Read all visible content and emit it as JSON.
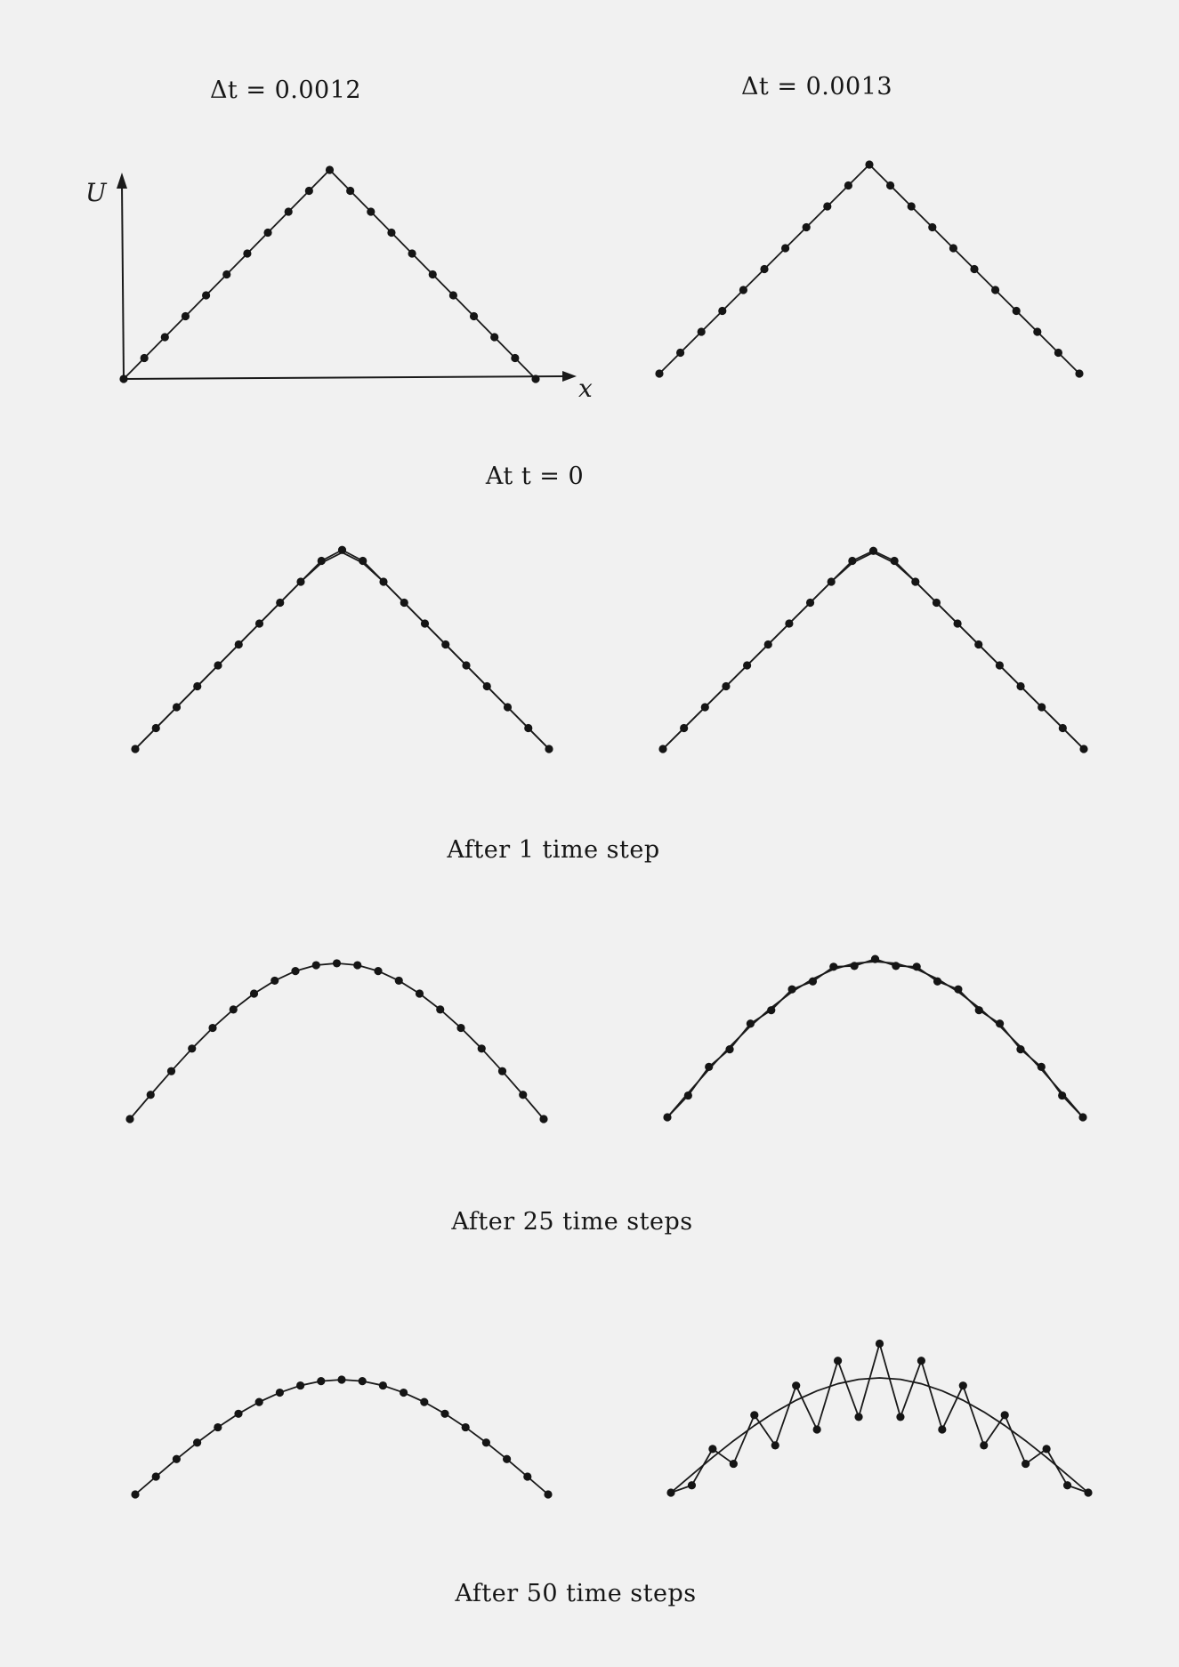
{
  "column_titles": [
    "Δt = 0.0012",
    "Δt = 0.0013"
  ],
  "row_captions": [
    "At t = 0",
    "After 1 time step",
    "After 25 time steps",
    "After 50 time steps"
  ],
  "axis_labels": {
    "y": "U",
    "x": "x"
  },
  "chart_data": [
    {
      "type": "line",
      "title": "Δt = 0.0012",
      "caption": "At t = 0",
      "x": [
        0,
        0.05,
        0.1,
        0.15,
        0.2,
        0.25,
        0.3,
        0.35,
        0.4,
        0.45,
        0.5,
        0.55,
        0.6,
        0.65,
        0.7,
        0.75,
        0.8,
        0.85,
        0.9,
        0.95,
        1.0
      ],
      "series": [
        {
          "values": [
            0,
            0.1,
            0.2,
            0.3,
            0.4,
            0.5,
            0.6,
            0.7,
            0.8,
            0.9,
            1.0,
            0.9,
            0.8,
            0.7,
            0.6,
            0.5,
            0.4,
            0.3,
            0.2,
            0.1,
            0
          ]
        }
      ],
      "xlabel": "x",
      "ylabel": "U",
      "ylim": [
        0,
        1
      ]
    },
    {
      "type": "line",
      "title": "Δt = 0.0013",
      "caption": "At t = 0",
      "x": [
        0,
        0.05,
        0.1,
        0.15,
        0.2,
        0.25,
        0.3,
        0.35,
        0.4,
        0.45,
        0.5,
        0.55,
        0.6,
        0.65,
        0.7,
        0.75,
        0.8,
        0.85,
        0.9,
        0.95,
        1.0
      ],
      "series": [
        {
          "values": [
            0,
            0.1,
            0.2,
            0.3,
            0.4,
            0.5,
            0.6,
            0.7,
            0.8,
            0.9,
            1.0,
            0.9,
            0.8,
            0.7,
            0.6,
            0.5,
            0.4,
            0.3,
            0.2,
            0.1,
            0
          ]
        }
      ],
      "ylim": [
        0,
        1
      ]
    },
    {
      "type": "line",
      "title": "Δt = 0.0012",
      "caption": "After 1 time step",
      "x": [
        0,
        0.05,
        0.1,
        0.15,
        0.2,
        0.25,
        0.3,
        0.35,
        0.4,
        0.45,
        0.5,
        0.55,
        0.6,
        0.65,
        0.7,
        0.75,
        0.8,
        0.85,
        0.9,
        0.95,
        1.0
      ],
      "series": [
        {
          "values": [
            0,
            0.1,
            0.2,
            0.3,
            0.4,
            0.5,
            0.6,
            0.7,
            0.8,
            0.9,
            0.952,
            0.9,
            0.8,
            0.7,
            0.6,
            0.5,
            0.4,
            0.3,
            0.2,
            0.1,
            0
          ]
        }
      ],
      "smooth_curve": [
        0,
        0.1,
        0.2,
        0.3,
        0.4,
        0.5,
        0.6,
        0.7,
        0.8,
        0.89,
        0.94,
        0.89,
        0.8,
        0.7,
        0.6,
        0.5,
        0.4,
        0.3,
        0.2,
        0.1,
        0
      ],
      "ylim": [
        0,
        1
      ]
    },
    {
      "type": "line",
      "title": "Δt = 0.0013",
      "caption": "After 1 time step",
      "x": [
        0,
        0.05,
        0.1,
        0.15,
        0.2,
        0.25,
        0.3,
        0.35,
        0.4,
        0.45,
        0.5,
        0.55,
        0.6,
        0.65,
        0.7,
        0.75,
        0.8,
        0.85,
        0.9,
        0.95,
        1.0
      ],
      "series": [
        {
          "values": [
            0,
            0.1,
            0.2,
            0.3,
            0.4,
            0.5,
            0.6,
            0.7,
            0.8,
            0.9,
            0.948,
            0.9,
            0.8,
            0.7,
            0.6,
            0.5,
            0.4,
            0.3,
            0.2,
            0.1,
            0
          ]
        }
      ],
      "smooth_curve": [
        0,
        0.1,
        0.2,
        0.3,
        0.4,
        0.5,
        0.6,
        0.7,
        0.8,
        0.89,
        0.94,
        0.89,
        0.8,
        0.7,
        0.6,
        0.5,
        0.4,
        0.3,
        0.2,
        0.1,
        0
      ],
      "ylim": [
        0,
        1
      ]
    },
    {
      "type": "line",
      "title": "Δt = 0.0012",
      "caption": "After 25 time steps",
      "x": [
        0,
        0.05,
        0.1,
        0.15,
        0.2,
        0.25,
        0.3,
        0.35,
        0.4,
        0.45,
        0.5,
        0.55,
        0.6,
        0.65,
        0.7,
        0.75,
        0.8,
        0.85,
        0.9,
        0.95,
        1.0
      ],
      "series": [
        {
          "values": [
            0,
            0.116,
            0.229,
            0.337,
            0.436,
            0.524,
            0.6,
            0.662,
            0.708,
            0.736,
            0.745,
            0.736,
            0.708,
            0.662,
            0.6,
            0.524,
            0.436,
            0.337,
            0.229,
            0.116,
            0
          ]
        }
      ],
      "ylim": [
        0,
        1
      ]
    },
    {
      "type": "line",
      "title": "Δt = 0.0013",
      "caption": "After 25 time steps",
      "x": [
        0,
        0.05,
        0.1,
        0.15,
        0.2,
        0.25,
        0.3,
        0.35,
        0.4,
        0.45,
        0.5,
        0.55,
        0.6,
        0.65,
        0.7,
        0.75,
        0.8,
        0.85,
        0.9,
        0.95,
        1.0
      ],
      "series": [
        {
          "values": [
            0,
            0.104,
            0.241,
            0.325,
            0.448,
            0.512,
            0.612,
            0.65,
            0.72,
            0.724,
            0.757,
            0.724,
            0.72,
            0.65,
            0.612,
            0.512,
            0.448,
            0.325,
            0.241,
            0.104,
            0
          ]
        }
      ],
      "smooth_curve": [
        0,
        0.116,
        0.229,
        0.337,
        0.436,
        0.524,
        0.6,
        0.662,
        0.708,
        0.736,
        0.745,
        0.736,
        0.708,
        0.662,
        0.6,
        0.524,
        0.436,
        0.337,
        0.229,
        0.116,
        0
      ],
      "ylim": [
        0,
        1
      ]
    },
    {
      "type": "line",
      "title": "Δt = 0.0012",
      "caption": "After 50 time steps",
      "x": [
        0,
        0.05,
        0.1,
        0.15,
        0.2,
        0.25,
        0.3,
        0.35,
        0.4,
        0.45,
        0.5,
        0.55,
        0.6,
        0.65,
        0.7,
        0.75,
        0.8,
        0.85,
        0.9,
        0.95,
        1.0
      ],
      "series": [
        {
          "values": [
            0,
            0.085,
            0.169,
            0.248,
            0.321,
            0.386,
            0.442,
            0.487,
            0.521,
            0.542,
            0.549,
            0.542,
            0.521,
            0.487,
            0.442,
            0.386,
            0.321,
            0.248,
            0.169,
            0.085,
            0
          ]
        }
      ],
      "ylim": [
        0,
        1
      ]
    },
    {
      "type": "line",
      "title": "Δt = 0.0013",
      "caption": "After 50 time steps",
      "x": [
        0,
        0.05,
        0.1,
        0.15,
        0.2,
        0.25,
        0.3,
        0.35,
        0.4,
        0.45,
        0.5,
        0.55,
        0.6,
        0.65,
        0.7,
        0.75,
        0.8,
        0.85,
        0.9,
        0.95,
        1.0
      ],
      "series": [
        {
          "values": [
            0,
            0.035,
            0.209,
            0.138,
            0.371,
            0.226,
            0.512,
            0.302,
            0.631,
            0.362,
            0.713,
            0.362,
            0.631,
            0.302,
            0.512,
            0.226,
            0.371,
            0.138,
            0.209,
            0.035,
            0
          ]
        }
      ],
      "smooth_curve": [
        0,
        0.085,
        0.169,
        0.248,
        0.321,
        0.386,
        0.442,
        0.487,
        0.521,
        0.542,
        0.549,
        0.542,
        0.521,
        0.487,
        0.442,
        0.386,
        0.321,
        0.248,
        0.169,
        0.085,
        0
      ],
      "ylim": [
        0,
        1
      ]
    }
  ]
}
